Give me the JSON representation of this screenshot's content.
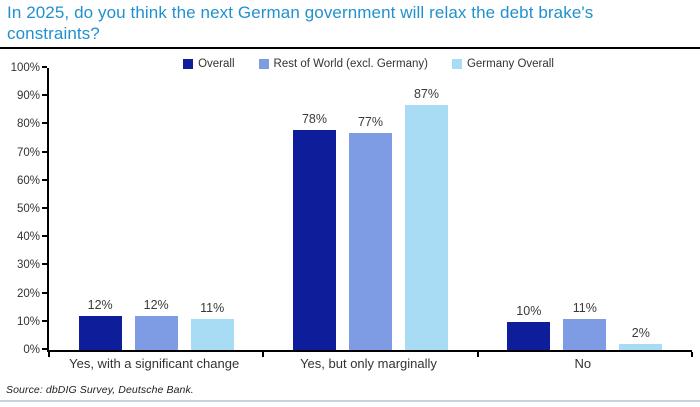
{
  "title": "In 2025, do you think the next German government will relax the debt brake's constraints?",
  "source": "Source: dbDIG Survey, Deutsche Bank.",
  "colors": {
    "title": "#2191CE",
    "axis": "#000000",
    "label": "#333333",
    "bottom_rule": "#C9D2D8"
  },
  "chart_data": {
    "type": "bar",
    "title": "In 2025, do you think the next German government will relax the debt brake's constraints?",
    "categories": [
      "Yes, with a significant change",
      "Yes, but only marginally",
      "No"
    ],
    "series": [
      {
        "name": "Overall",
        "color": "#0E1E9B",
        "values": [
          12,
          78,
          10
        ]
      },
      {
        "name": "Rest of World (excl. Germany)",
        "color": "#7D9CE4",
        "values": [
          12,
          77,
          11
        ]
      },
      {
        "name": "Germany Overall",
        "color": "#A8DCF4",
        "values": [
          11,
          87,
          2
        ]
      }
    ],
    "value_suffix": "%",
    "xlabel": "",
    "ylabel": "",
    "ylim": [
      0,
      100
    ],
    "ytick_step": 10,
    "grid": false,
    "legend_position": "top"
  }
}
